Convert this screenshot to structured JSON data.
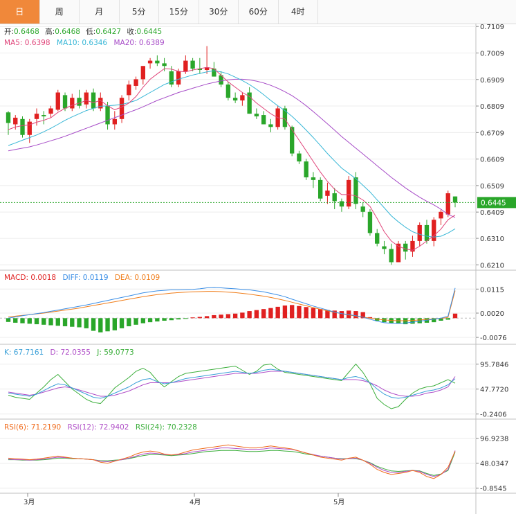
{
  "tabs": [
    "日",
    "周",
    "月",
    "5分",
    "15分",
    "30分",
    "60分",
    "4时"
  ],
  "active_tab": 0,
  "colors": {
    "up": "#e02020",
    "down": "#2aa62a",
    "ma5": "#e0457a",
    "ma10": "#36b6d6",
    "ma20": "#a64bc7",
    "macd_diff": "#3a8ee6",
    "macd_dea": "#f07d1a",
    "k": "#3aa0d8",
    "d": "#b04fc8",
    "j": "#3aae3a",
    "rsi6": "#f06a1a",
    "rsi12": "#b04fc8",
    "rsi24": "#3aae3a"
  },
  "ohlc_info": {
    "open_label": "开:",
    "open": "0.6468",
    "high_label": "高:",
    "high": "0.6468",
    "low_label": "低:",
    "low": "0.6427",
    "close_label": "收:",
    "close": "0.6445"
  },
  "ma_info": {
    "ma5": "MA5: 0.6398",
    "ma10": "MA10: 0.6346",
    "ma20": "MA20: 0.6389"
  },
  "macd_info": {
    "macd": "MACD: 0.0018",
    "diff": "DIFF: 0.0119",
    "dea": "DEA: 0.0109"
  },
  "kdj_info": {
    "k": "K: 67.7161",
    "d": "D: 72.0355",
    "j": "J: 59.0773"
  },
  "rsi_info": {
    "rsi6": "RSI(6): 71.2190",
    "rsi12": "RSI(12): 72.9402",
    "rsi24": "RSI(24): 70.2328"
  },
  "price_badge": "0.6445",
  "x_labels": [
    "3月",
    "4月",
    "5月"
  ],
  "chart_data": [
    {
      "type": "candlestick",
      "name": "price",
      "ylim": [
        0.619,
        0.712
      ],
      "yticks": [
        "0.7109",
        "0.7009",
        "0.6909",
        "0.6809",
        "0.6709",
        "0.6609",
        "0.6509",
        "0.6409",
        "0.6310",
        "0.6210"
      ],
      "current_price": 0.6445,
      "candles": [
        [
          0.6785,
          0.679,
          0.67,
          0.6745
        ],
        [
          0.674,
          0.6775,
          0.672,
          0.6765
        ],
        [
          0.676,
          0.677,
          0.669,
          0.67
        ],
        [
          0.67,
          0.676,
          0.667,
          0.675
        ],
        [
          0.676,
          0.68,
          0.6735,
          0.678
        ],
        [
          0.6775,
          0.679,
          0.674,
          0.677
        ],
        [
          0.678,
          0.681,
          0.6765,
          0.68
        ],
        [
          0.6795,
          0.687,
          0.679,
          0.686
        ],
        [
          0.685,
          0.686,
          0.679,
          0.68
        ],
        [
          0.68,
          0.6855,
          0.679,
          0.684
        ],
        [
          0.684,
          0.687,
          0.68,
          0.681
        ],
        [
          0.6815,
          0.687,
          0.68,
          0.686
        ],
        [
          0.686,
          0.6875,
          0.679,
          0.68
        ],
        [
          0.68,
          0.686,
          0.679,
          0.684
        ],
        [
          0.681,
          0.6825,
          0.672,
          0.674
        ],
        [
          0.674,
          0.679,
          0.672,
          0.676
        ],
        [
          0.676,
          0.685,
          0.6745,
          0.684
        ],
        [
          0.685,
          0.6905,
          0.683,
          0.689
        ],
        [
          0.6885,
          0.692,
          0.687,
          0.691
        ],
        [
          0.691,
          0.696,
          0.689,
          0.696
        ],
        [
          0.697,
          0.699,
          0.695,
          0.698
        ],
        [
          0.698,
          0.7,
          0.696,
          0.697
        ],
        [
          0.697,
          0.699,
          0.694,
          0.696
        ],
        [
          0.694,
          0.696,
          0.688,
          0.689
        ],
        [
          0.689,
          0.695,
          0.688,
          0.694
        ],
        [
          0.694,
          0.7,
          0.693,
          0.698
        ],
        [
          0.698,
          0.699,
          0.694,
          0.695
        ],
        [
          0.695,
          0.699,
          0.693,
          0.6945
        ],
        [
          0.6945,
          0.7035,
          0.693,
          0.6955
        ],
        [
          0.695,
          0.6975,
          0.692,
          0.692
        ],
        [
          0.6925,
          0.694,
          0.688,
          0.689
        ],
        [
          0.689,
          0.69,
          0.683,
          0.684
        ],
        [
          0.684,
          0.686,
          0.682,
          0.683
        ],
        [
          0.683,
          0.686,
          0.681,
          0.685
        ],
        [
          0.686,
          0.688,
          0.678,
          0.678
        ],
        [
          0.678,
          0.68,
          0.676,
          0.677
        ],
        [
          0.6775,
          0.679,
          0.674,
          0.674
        ],
        [
          0.674,
          0.676,
          0.671,
          0.673
        ],
        [
          0.673,
          0.681,
          0.672,
          0.68
        ],
        [
          0.68,
          0.681,
          0.672,
          0.673
        ],
        [
          0.673,
          0.6735,
          0.662,
          0.663
        ],
        [
          0.663,
          0.664,
          0.659,
          0.66
        ],
        [
          0.66,
          0.661,
          0.653,
          0.654
        ],
        [
          0.654,
          0.656,
          0.65,
          0.653
        ],
        [
          0.653,
          0.654,
          0.645,
          0.646
        ],
        [
          0.647,
          0.652,
          0.644,
          0.649
        ],
        [
          0.648,
          0.65,
          0.642,
          0.645
        ],
        [
          0.645,
          0.646,
          0.641,
          0.643
        ],
        [
          0.643,
          0.6545,
          0.642,
          0.653
        ],
        [
          0.654,
          0.656,
          0.642,
          0.644
        ],
        [
          0.643,
          0.6445,
          0.639,
          0.641
        ],
        [
          0.641,
          0.642,
          0.632,
          0.633
        ],
        [
          0.633,
          0.6345,
          0.628,
          0.629
        ],
        [
          0.628,
          0.63,
          0.625,
          0.627
        ],
        [
          0.627,
          0.629,
          0.621,
          0.622
        ],
        [
          0.622,
          0.63,
          0.622,
          0.629
        ],
        [
          0.629,
          0.63,
          0.623,
          0.626
        ],
        [
          0.626,
          0.632,
          0.624,
          0.63
        ],
        [
          0.63,
          0.637,
          0.628,
          0.636
        ],
        [
          0.636,
          0.638,
          0.629,
          0.63
        ],
        [
          0.63,
          0.639,
          0.628,
          0.638
        ],
        [
          0.6385,
          0.642,
          0.636,
          0.641
        ],
        [
          0.64,
          0.649,
          0.639,
          0.648
        ],
        [
          0.6468,
          0.6468,
          0.6427,
          0.6445
        ]
      ],
      "ma5": [
        0.672,
        0.673,
        0.6735,
        0.6738,
        0.6748,
        0.6755,
        0.6765,
        0.6785,
        0.68,
        0.6812,
        0.682,
        0.683,
        0.6822,
        0.683,
        0.681,
        0.6795,
        0.6805,
        0.682,
        0.6845,
        0.688,
        0.691,
        0.693,
        0.695,
        0.6948,
        0.694,
        0.6938,
        0.6945,
        0.695,
        0.6955,
        0.695,
        0.6925,
        0.69,
        0.688,
        0.686,
        0.6845,
        0.682,
        0.68,
        0.678,
        0.6765,
        0.676,
        0.672,
        0.668,
        0.664,
        0.66,
        0.656,
        0.6525,
        0.6495,
        0.6475,
        0.6475,
        0.647,
        0.6455,
        0.643,
        0.6385,
        0.6335,
        0.63,
        0.628,
        0.627,
        0.6265,
        0.628,
        0.63,
        0.632,
        0.6345,
        0.638,
        0.6398
      ],
      "ma10": [
        0.666,
        0.667,
        0.668,
        0.669,
        0.67,
        0.6712,
        0.6725,
        0.674,
        0.6755,
        0.6768,
        0.678,
        0.6792,
        0.68,
        0.6808,
        0.681,
        0.6812,
        0.6815,
        0.6822,
        0.683,
        0.6845,
        0.686,
        0.6875,
        0.689,
        0.69,
        0.691,
        0.6918,
        0.6926,
        0.6932,
        0.6938,
        0.6942,
        0.6938,
        0.693,
        0.6918,
        0.6905,
        0.689,
        0.6872,
        0.6852,
        0.683,
        0.681,
        0.6792,
        0.677,
        0.6745,
        0.6718,
        0.669,
        0.666,
        0.663,
        0.6602,
        0.6575,
        0.6555,
        0.6535,
        0.651,
        0.6485,
        0.6455,
        0.6425,
        0.6395,
        0.6372,
        0.6352,
        0.6335,
        0.6325,
        0.6318,
        0.6315,
        0.6318,
        0.633,
        0.6346
      ],
      "ma20": [
        0.664,
        0.6645,
        0.665,
        0.6655,
        0.6662,
        0.667,
        0.6678,
        0.6686,
        0.6695,
        0.6705,
        0.6715,
        0.6725,
        0.6735,
        0.6745,
        0.6755,
        0.6765,
        0.6775,
        0.6785,
        0.6795,
        0.6806,
        0.6818,
        0.683,
        0.684,
        0.685,
        0.686,
        0.6868,
        0.6876,
        0.6884,
        0.6892,
        0.6898,
        0.6904,
        0.6908,
        0.691,
        0.691,
        0.6908,
        0.6903,
        0.6896,
        0.6887,
        0.6876,
        0.6863,
        0.6848,
        0.683,
        0.681,
        0.6788,
        0.6765,
        0.6742,
        0.6718,
        0.6694,
        0.6672,
        0.665,
        0.6628,
        0.6606,
        0.6584,
        0.6562,
        0.654,
        0.652,
        0.65,
        0.6482,
        0.6465,
        0.645,
        0.6436,
        0.642,
        0.64,
        0.6389
      ]
    },
    {
      "type": "bar",
      "name": "MACD",
      "ylim": [
        -0.0095,
        0.0135
      ],
      "yticks": [
        "0.0115",
        "0.0020",
        "-0.0076"
      ],
      "macd": [
        -0.0015,
        -0.0018,
        -0.002,
        -0.0022,
        -0.0024,
        -0.0026,
        -0.0028,
        -0.003,
        -0.0032,
        -0.0034,
        -0.0036,
        -0.004,
        -0.005,
        -0.0056,
        -0.0052,
        -0.0048,
        -0.004,
        -0.0032,
        -0.0026,
        -0.002,
        -0.0016,
        -0.0013,
        -0.001,
        -0.0008,
        -0.0005,
        -0.0002,
        0.0003,
        0.0005,
        0.0008,
        0.0012,
        0.0014,
        0.0016,
        0.0018,
        0.0022,
        0.0028,
        0.0032,
        0.0036,
        0.004,
        0.0045,
        0.005,
        0.0052,
        0.0048,
        0.0044,
        0.004,
        0.0036,
        0.0032,
        0.003,
        0.0028,
        0.003,
        0.0028,
        0.0024,
        0.0004,
        -0.001,
        -0.0016,
        -0.002,
        -0.0022,
        -0.0024,
        -0.0022,
        -0.002,
        -0.0018,
        -0.0016,
        -0.001,
        -0.0006,
        0.0018
      ],
      "diff": [
        0.0,
        0.0005,
        0.001,
        0.0014,
        0.0018,
        0.0022,
        0.0027,
        0.0032,
        0.0037,
        0.0042,
        0.0047,
        0.0052,
        0.0058,
        0.0064,
        0.007,
        0.0076,
        0.0082,
        0.0088,
        0.0094,
        0.01,
        0.0104,
        0.0108,
        0.011,
        0.0112,
        0.0112,
        0.0113,
        0.0114,
        0.0116,
        0.012,
        0.0121,
        0.012,
        0.0118,
        0.0116,
        0.0114,
        0.0112,
        0.0108,
        0.0104,
        0.0098,
        0.0092,
        0.0085,
        0.0075,
        0.0066,
        0.0057,
        0.0048,
        0.004,
        0.0032,
        0.0024,
        0.0018,
        0.0014,
        0.001,
        0.0004,
        -0.0004,
        -0.0012,
        -0.0018,
        -0.002,
        -0.002,
        -0.0019,
        -0.0016,
        -0.0012,
        -0.0008,
        -0.0004,
        0.0,
        0.0008,
        0.0119
      ],
      "dea": [
        0.0005,
        0.0008,
        0.0011,
        0.0014,
        0.0017,
        0.002,
        0.0024,
        0.0028,
        0.0032,
        0.0036,
        0.004,
        0.0045,
        0.005,
        0.0055,
        0.006,
        0.0065,
        0.007,
        0.0075,
        0.008,
        0.0085,
        0.0089,
        0.0093,
        0.0096,
        0.0099,
        0.0101,
        0.0103,
        0.0104,
        0.0105,
        0.0106,
        0.0106,
        0.0105,
        0.0103,
        0.0101,
        0.0098,
        0.0095,
        0.0091,
        0.0087,
        0.0082,
        0.0076,
        0.007,
        0.0063,
        0.0056,
        0.0049,
        0.0042,
        0.0035,
        0.0029,
        0.0023,
        0.0018,
        0.0013,
        0.0008,
        0.0004,
        0.0,
        -0.0004,
        -0.0007,
        -0.0009,
        -0.001,
        -0.001,
        -0.0009,
        -0.0007,
        -0.0005,
        -0.0003,
        -0.0001,
        0.0003,
        0.0109
      ]
    },
    {
      "type": "line",
      "name": "KDJ",
      "ylim": [
        -6,
        106
      ],
      "yticks": [
        "95.7846",
        "47.7720",
        "-0.2406"
      ],
      "k": [
        40,
        38,
        36,
        34,
        38,
        45,
        52,
        58,
        56,
        50,
        44,
        38,
        32,
        30,
        34,
        40,
        46,
        52,
        60,
        66,
        68,
        62,
        58,
        60,
        64,
        68,
        70,
        72,
        74,
        76,
        78,
        80,
        82,
        80,
        78,
        80,
        84,
        86,
        84,
        82,
        80,
        78,
        76,
        74,
        72,
        70,
        68,
        66,
        70,
        72,
        68,
        60,
        48,
        38,
        32,
        30,
        32,
        36,
        40,
        44,
        46,
        50,
        56,
        67.7161
      ],
      "d": [
        42,
        40,
        38,
        36,
        38,
        42,
        46,
        50,
        52,
        50,
        46,
        42,
        38,
        34,
        34,
        36,
        40,
        44,
        50,
        56,
        60,
        60,
        60,
        60,
        62,
        64,
        66,
        68,
        70,
        72,
        74,
        76,
        78,
        78,
        78,
        78,
        80,
        82,
        82,
        82,
        80,
        78,
        76,
        74,
        72,
        70,
        68,
        66,
        66,
        66,
        64,
        60,
        54,
        46,
        40,
        36,
        34,
        34,
        36,
        40,
        42,
        46,
        52,
        72.0355
      ],
      "j": [
        36,
        32,
        30,
        28,
        40,
        52,
        66,
        76,
        62,
        48,
        38,
        28,
        22,
        20,
        34,
        50,
        60,
        70,
        82,
        88,
        80,
        64,
        52,
        62,
        72,
        78,
        80,
        82,
        84,
        86,
        88,
        90,
        92,
        84,
        76,
        82,
        94,
        96,
        86,
        80,
        78,
        76,
        74,
        72,
        70,
        68,
        66,
        64,
        80,
        96,
        80,
        58,
        30,
        18,
        10,
        14,
        28,
        40,
        48,
        52,
        54,
        60,
        66,
        59.0773
      ]
    },
    {
      "type": "line",
      "name": "RSI",
      "ylim": [
        -8,
        106
      ],
      "yticks": [
        "96.9238",
        "48.0347",
        "-0.8545"
      ],
      "rsi6": [
        58,
        57,
        56,
        55,
        56,
        58,
        60,
        62,
        60,
        58,
        57,
        56,
        55,
        50,
        48,
        52,
        56,
        60,
        66,
        70,
        72,
        70,
        66,
        64,
        66,
        70,
        74,
        76,
        78,
        80,
        82,
        84,
        82,
        80,
        78,
        78,
        80,
        82,
        80,
        78,
        76,
        72,
        68,
        64,
        60,
        58,
        56,
        54,
        58,
        60,
        54,
        46,
        36,
        30,
        26,
        28,
        30,
        34,
        30,
        22,
        18,
        26,
        40,
        71.219
      ],
      "rsi12": [
        56,
        55,
        55,
        54,
        55,
        56,
        58,
        60,
        59,
        58,
        57,
        56,
        55,
        52,
        51,
        53,
        55,
        58,
        62,
        66,
        68,
        67,
        65,
        64,
        65,
        67,
        70,
        72,
        74,
        76,
        78,
        78,
        77,
        76,
        75,
        75,
        76,
        78,
        77,
        76,
        75,
        72,
        68,
        65,
        62,
        60,
        58,
        56,
        57,
        58,
        54,
        48,
        40,
        34,
        30,
        30,
        32,
        34,
        32,
        26,
        22,
        26,
        36,
        72.9402
      ],
      "rsi24": [
        55,
        55,
        54,
        54,
        54,
        55,
        56,
        58,
        58,
        57,
        57,
        56,
        55,
        53,
        53,
        54,
        55,
        57,
        60,
        63,
        65,
        65,
        64,
        63,
        64,
        65,
        67,
        69,
        71,
        72,
        73,
        73,
        73,
        72,
        71,
        71,
        72,
        73,
        73,
        72,
        71,
        69,
        66,
        64,
        62,
        60,
        58,
        57,
        57,
        57,
        54,
        49,
        42,
        37,
        33,
        32,
        33,
        34,
        33,
        28,
        24,
        27,
        34,
        70.2328
      ]
    }
  ]
}
